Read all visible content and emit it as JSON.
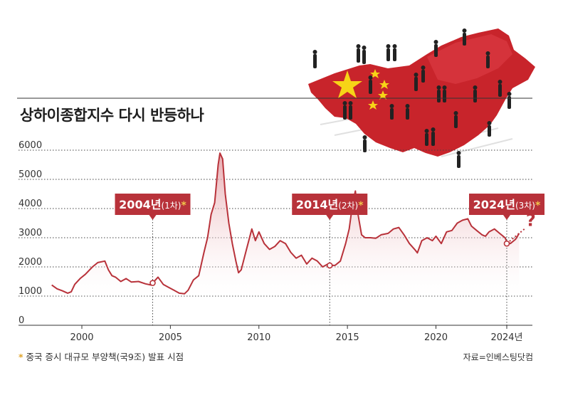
{
  "title": "상하이종합지수 다시 반등하나",
  "note_marker": "*",
  "note": "중국 증시 대규모 부양책(국9조) 발표 시점",
  "source": "자료=인베스팅닷컴",
  "colors": {
    "line": "#b8323a",
    "fill_top": "#e39aa0",
    "callout": "#b8323a",
    "asterisk": "#f0c64a",
    "flag": "#c8242b",
    "star": "#f7d417"
  },
  "question_mark": "?",
  "chart_data": {
    "type": "area",
    "title": "상하이종합지수 다시 반등하나",
    "xlabel": "",
    "ylabel": "",
    "xlim": [
      1997.8,
      2025.3
    ],
    "ylim": [
      0,
      6200
    ],
    "grid": true,
    "yticks": [
      "0",
      "1000",
      "2000",
      "3000",
      "4000",
      "5000",
      "6000"
    ],
    "xticks": [
      "2000",
      "2005",
      "2010",
      "2015",
      "2020",
      "2024년"
    ],
    "xtick_values": [
      2000,
      2005,
      2010,
      2015,
      2020,
      2024
    ],
    "series": [
      {
        "x": [
          1998.3,
          1998.6,
          1998.9,
          1999.2,
          1999.4,
          1999.6,
          1999.9,
          2000.2,
          2000.6,
          2000.9,
          2001.3,
          2001.5,
          2001.7,
          2001.9,
          2002.2,
          2002.5,
          2002.8,
          2003.2,
          2003.6,
          2003.9,
          2004.0,
          2004.3,
          2004.6,
          2004.9,
          2005.2,
          2005.5,
          2005.8,
          2006.0,
          2006.3,
          2006.6,
          2006.9,
          2007.1,
          2007.3,
          2007.5,
          2007.7,
          2007.8,
          2007.95,
          2008.1,
          2008.3,
          2008.5,
          2008.7,
          2008.85,
          2009.0,
          2009.3,
          2009.6,
          2009.8,
          2010.0,
          2010.3,
          2010.6,
          2010.9,
          2011.2,
          2011.5,
          2011.8,
          2012.1,
          2012.4,
          2012.7,
          2013.0,
          2013.3,
          2013.6,
          2013.9,
          2014.0,
          2014.3,
          2014.6,
          2014.9,
          2015.1,
          2015.3,
          2015.45,
          2015.6,
          2015.8,
          2016.0,
          2016.3,
          2016.6,
          2016.9,
          2017.3,
          2017.6,
          2017.9,
          2018.2,
          2018.5,
          2018.8,
          2018.95,
          2019.2,
          2019.5,
          2019.8,
          2020.0,
          2020.3,
          2020.6,
          2020.9,
          2021.2,
          2021.5,
          2021.8,
          2022.0,
          2022.3,
          2022.6,
          2022.8,
          2023.0,
          2023.3,
          2023.6,
          2023.9,
          2024.0,
          2024.2,
          2024.5,
          2024.7
        ],
        "y": [
          1380,
          1250,
          1180,
          1100,
          1150,
          1400,
          1600,
          1750,
          2000,
          2150,
          2200,
          1900,
          1700,
          1650,
          1500,
          1600,
          1480,
          1500,
          1420,
          1380,
          1450,
          1650,
          1400,
          1300,
          1200,
          1100,
          1080,
          1200,
          1550,
          1700,
          2500,
          3000,
          3800,
          4200,
          5500,
          5900,
          5700,
          4500,
          3500,
          2800,
          2200,
          1800,
          1900,
          2600,
          3300,
          2900,
          3200,
          2800,
          2600,
          2700,
          2900,
          2800,
          2500,
          2300,
          2400,
          2100,
          2300,
          2200,
          2000,
          2100,
          2050,
          2050,
          2200,
          2800,
          3300,
          4200,
          4600,
          3800,
          3100,
          3000,
          3000,
          2980,
          3100,
          3150,
          3300,
          3350,
          3100,
          2800,
          2600,
          2480,
          2900,
          3000,
          2900,
          3050,
          2800,
          3200,
          3250,
          3500,
          3600,
          3650,
          3400,
          3250,
          3100,
          3050,
          3200,
          3300,
          3150,
          3000,
          2870,
          2800,
          2950,
          3150
        ]
      }
    ],
    "callouts": [
      {
        "x": 2004.0,
        "value": 1450,
        "year_label": "2004년",
        "round_label": "(1차)",
        "marker": "*"
      },
      {
        "x": 2014.0,
        "value": 2050,
        "year_label": "2014년",
        "round_label": "(2차)",
        "marker": "*"
      },
      {
        "x": 2024.0,
        "value": 2800,
        "year_label": "2024년",
        "round_label": "(3차)",
        "marker": "*"
      }
    ],
    "projection": {
      "from": [
        2024.0,
        2800
      ],
      "to": [
        2025.0,
        3300
      ]
    }
  }
}
